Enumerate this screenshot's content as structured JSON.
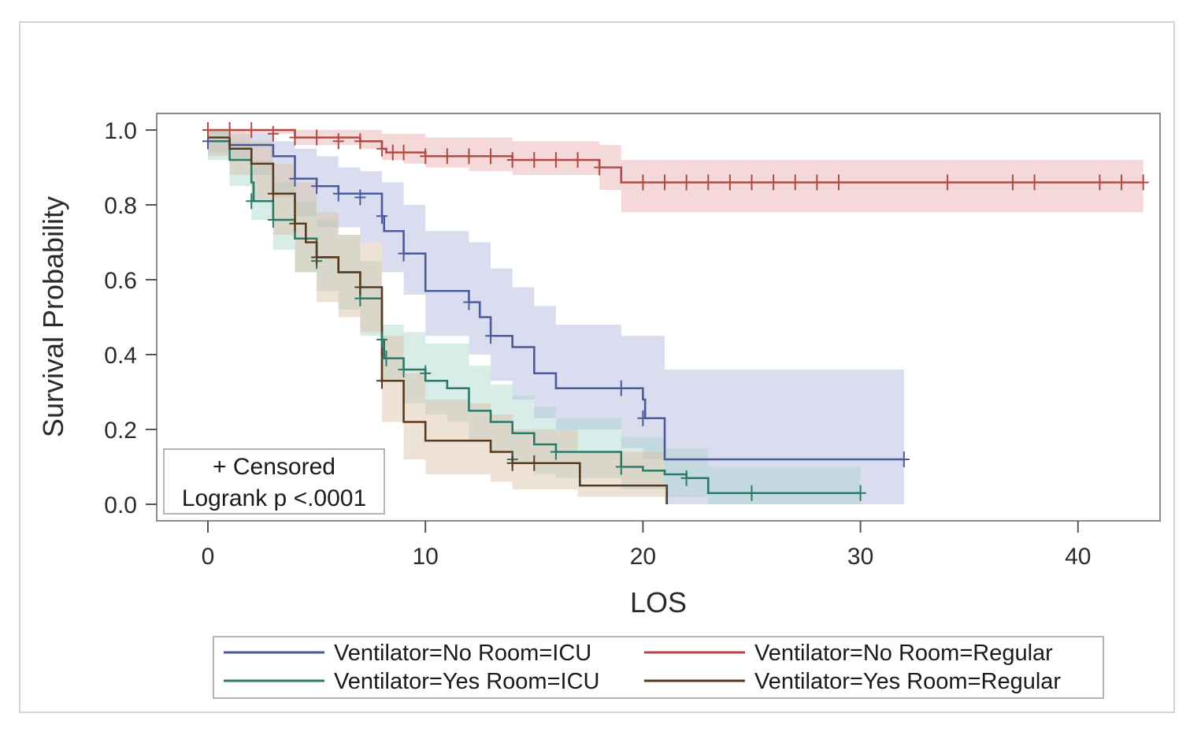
{
  "chart_data": {
    "type": "line",
    "subtype": "kaplan-meier-step",
    "title": "",
    "xlabel": "LOS",
    "ylabel": "Survival Probability",
    "xlim": [
      -2,
      43.5
    ],
    "ylim": [
      -0.04,
      1.04
    ],
    "xticks": [
      0,
      10,
      20,
      30,
      40
    ],
    "yticks": [
      0.0,
      0.2,
      0.4,
      0.6,
      0.8,
      1.0
    ],
    "xtick_labels": [
      "0",
      "10",
      "20",
      "30",
      "40"
    ],
    "ytick_labels": [
      "0.0",
      "0.2",
      "0.4",
      "0.6",
      "0.8",
      "1.0"
    ],
    "annotation": {
      "line1": "+ Censored",
      "line2": "Logrank p <.0001"
    },
    "legend_position": "bottom",
    "series": [
      {
        "name": "Ventilator=No Room=ICU",
        "color": "#4a5a9c",
        "band_color": "#aeb4dc",
        "steps": [
          [
            0,
            0.97
          ],
          [
            1,
            0.96
          ],
          [
            3,
            0.93
          ],
          [
            4,
            0.87
          ],
          [
            5,
            0.85
          ],
          [
            6,
            0.83
          ],
          [
            8,
            0.77
          ],
          [
            8.1,
            0.73
          ],
          [
            9,
            0.67
          ],
          [
            10,
            0.57
          ],
          [
            12,
            0.54
          ],
          [
            12.5,
            0.5
          ],
          [
            13,
            0.45
          ],
          [
            14,
            0.42
          ],
          [
            15,
            0.35
          ],
          [
            16,
            0.31
          ],
          [
            19,
            0.31
          ],
          [
            20,
            0.28
          ],
          [
            20.1,
            0.23
          ],
          [
            21,
            0.12
          ],
          [
            32,
            0.12
          ]
        ],
        "lower": [
          [
            0,
            0.94
          ],
          [
            1,
            0.92
          ],
          [
            2,
            0.88
          ],
          [
            3,
            0.82
          ],
          [
            4,
            0.77
          ],
          [
            5,
            0.74
          ],
          [
            7,
            0.7
          ],
          [
            8,
            0.62
          ],
          [
            9,
            0.56
          ],
          [
            10,
            0.45
          ],
          [
            12,
            0.4
          ],
          [
            13,
            0.33
          ],
          [
            14,
            0.28
          ],
          [
            15,
            0.23
          ],
          [
            16,
            0.2
          ],
          [
            19,
            0.15
          ],
          [
            20,
            0.12
          ],
          [
            21,
            0.0
          ],
          [
            32,
            0.0
          ]
        ],
        "upper": [
          [
            0,
            1.0
          ],
          [
            1,
            0.99
          ],
          [
            3,
            0.97
          ],
          [
            4,
            0.95
          ],
          [
            5,
            0.93
          ],
          [
            6,
            0.9
          ],
          [
            7,
            0.89
          ],
          [
            8,
            0.86
          ],
          [
            9,
            0.8
          ],
          [
            10,
            0.73
          ],
          [
            12,
            0.7
          ],
          [
            13,
            0.63
          ],
          [
            14,
            0.58
          ],
          [
            15,
            0.53
          ],
          [
            16,
            0.48
          ],
          [
            19,
            0.45
          ],
          [
            21,
            0.36
          ],
          [
            32,
            0.36
          ]
        ],
        "censored": [
          [
            0,
            0.97
          ],
          [
            4,
            0.87
          ],
          [
            5,
            0.85
          ],
          [
            6,
            0.83
          ],
          [
            7,
            0.82
          ],
          [
            8,
            0.77
          ],
          [
            9,
            0.67
          ],
          [
            12,
            0.54
          ],
          [
            13,
            0.45
          ],
          [
            19,
            0.31
          ],
          [
            20,
            0.23
          ],
          [
            32,
            0.12
          ]
        ]
      },
      {
        "name": "Ventilator=No Room=Regular",
        "color": "#b04a42",
        "band_color": "#e8a9ac",
        "steps": [
          [
            0,
            1.0
          ],
          [
            4,
            0.98
          ],
          [
            7,
            0.97
          ],
          [
            8,
            0.95
          ],
          [
            8.2,
            0.94
          ],
          [
            9,
            0.94
          ],
          [
            10,
            0.93
          ],
          [
            12,
            0.93
          ],
          [
            14,
            0.92
          ],
          [
            18,
            0.9
          ],
          [
            19,
            0.86
          ],
          [
            43,
            0.86
          ]
        ],
        "lower": [
          [
            0,
            0.99
          ],
          [
            4,
            0.96
          ],
          [
            7,
            0.95
          ],
          [
            8,
            0.92
          ],
          [
            9,
            0.91
          ],
          [
            10,
            0.9
          ],
          [
            12,
            0.89
          ],
          [
            14,
            0.88
          ],
          [
            18,
            0.84
          ],
          [
            19,
            0.78
          ],
          [
            43,
            0.78
          ]
        ],
        "upper": [
          [
            0,
            1.0
          ],
          [
            8,
            0.99
          ],
          [
            10,
            0.98
          ],
          [
            14,
            0.97
          ],
          [
            18,
            0.96
          ],
          [
            19,
            0.92
          ],
          [
            43,
            0.92
          ]
        ],
        "censored": [
          [
            0,
            1.0
          ],
          [
            1,
            1.0
          ],
          [
            2,
            1.0
          ],
          [
            3,
            0.99
          ],
          [
            4,
            0.98
          ],
          [
            5,
            0.98
          ],
          [
            6,
            0.97
          ],
          [
            7,
            0.97
          ],
          [
            8,
            0.95
          ],
          [
            8.5,
            0.94
          ],
          [
            9,
            0.94
          ],
          [
            10,
            0.93
          ],
          [
            11,
            0.93
          ],
          [
            12,
            0.93
          ],
          [
            13,
            0.93
          ],
          [
            14,
            0.92
          ],
          [
            15,
            0.92
          ],
          [
            16,
            0.92
          ],
          [
            17,
            0.92
          ],
          [
            18,
            0.9
          ],
          [
            20,
            0.86
          ],
          [
            21,
            0.86
          ],
          [
            22,
            0.86
          ],
          [
            23,
            0.86
          ],
          [
            24,
            0.86
          ],
          [
            25,
            0.86
          ],
          [
            26,
            0.86
          ],
          [
            27,
            0.86
          ],
          [
            28,
            0.86
          ],
          [
            29,
            0.86
          ],
          [
            34,
            0.86
          ],
          [
            37,
            0.86
          ],
          [
            38,
            0.86
          ],
          [
            41,
            0.86
          ],
          [
            42,
            0.86
          ],
          [
            43,
            0.86
          ]
        ]
      },
      {
        "name": "Ventilator=Yes Room=ICU",
        "color": "#2a7a6a",
        "band_color": "#a9d4cd",
        "steps": [
          [
            0,
            0.97
          ],
          [
            1,
            0.92
          ],
          [
            2,
            0.86
          ],
          [
            2.1,
            0.81
          ],
          [
            3,
            0.76
          ],
          [
            4,
            0.71
          ],
          [
            5,
            0.66
          ],
          [
            6,
            0.62
          ],
          [
            7,
            0.55
          ],
          [
            8,
            0.44
          ],
          [
            8.1,
            0.39
          ],
          [
            9,
            0.36
          ],
          [
            10,
            0.33
          ],
          [
            11,
            0.31
          ],
          [
            12,
            0.25
          ],
          [
            13,
            0.22
          ],
          [
            14,
            0.19
          ],
          [
            15,
            0.16
          ],
          [
            16,
            0.14
          ],
          [
            19,
            0.1
          ],
          [
            20,
            0.09
          ],
          [
            21,
            0.08
          ],
          [
            22,
            0.07
          ],
          [
            23,
            0.03
          ],
          [
            30,
            0.03
          ]
        ],
        "lower": [
          [
            0,
            0.92
          ],
          [
            1,
            0.85
          ],
          [
            2,
            0.76
          ],
          [
            3,
            0.68
          ],
          [
            4,
            0.62
          ],
          [
            5,
            0.57
          ],
          [
            6,
            0.52
          ],
          [
            7,
            0.45
          ],
          [
            8,
            0.33
          ],
          [
            9,
            0.27
          ],
          [
            10,
            0.24
          ],
          [
            11,
            0.22
          ],
          [
            12,
            0.17
          ],
          [
            13,
            0.14
          ],
          [
            14,
            0.11
          ],
          [
            15,
            0.08
          ],
          [
            16,
            0.07
          ],
          [
            19,
            0.04
          ],
          [
            21,
            0.02
          ],
          [
            23,
            0.0
          ],
          [
            30,
            0.0
          ]
        ],
        "upper": [
          [
            0,
            1.0
          ],
          [
            1,
            0.97
          ],
          [
            2,
            0.92
          ],
          [
            3,
            0.86
          ],
          [
            4,
            0.81
          ],
          [
            5,
            0.76
          ],
          [
            6,
            0.72
          ],
          [
            7,
            0.65
          ],
          [
            8,
            0.48
          ],
          [
            9,
            0.46
          ],
          [
            10,
            0.43
          ],
          [
            12,
            0.37
          ],
          [
            13,
            0.32
          ],
          [
            14,
            0.29
          ],
          [
            15,
            0.26
          ],
          [
            16,
            0.23
          ],
          [
            19,
            0.18
          ],
          [
            21,
            0.15
          ],
          [
            23,
            0.1
          ],
          [
            30,
            0.1
          ]
        ],
        "censored": [
          [
            2,
            0.81
          ],
          [
            3,
            0.76
          ],
          [
            5,
            0.65
          ],
          [
            7,
            0.55
          ],
          [
            8,
            0.44
          ],
          [
            8.2,
            0.39
          ],
          [
            9,
            0.36
          ],
          [
            10,
            0.35
          ],
          [
            14,
            0.12
          ],
          [
            16,
            0.14
          ],
          [
            19,
            0.1
          ],
          [
            22,
            0.07
          ],
          [
            25,
            0.03
          ],
          [
            30,
            0.03
          ]
        ]
      },
      {
        "name": "Ventilator=Yes Room=Regular",
        "color": "#5a3a1e",
        "band_color": "#d9bfa3",
        "steps": [
          [
            0,
            0.98
          ],
          [
            1,
            0.95
          ],
          [
            2,
            0.91
          ],
          [
            3,
            0.83
          ],
          [
            4,
            0.75
          ],
          [
            4.5,
            0.7
          ],
          [
            5,
            0.66
          ],
          [
            6,
            0.62
          ],
          [
            7,
            0.58
          ],
          [
            8,
            0.33
          ],
          [
            9,
            0.22
          ],
          [
            10,
            0.17
          ],
          [
            12,
            0.17
          ],
          [
            13,
            0.14
          ],
          [
            14,
            0.11
          ],
          [
            17,
            0.11
          ],
          [
            17.1,
            0.05
          ],
          [
            21,
            0.05
          ],
          [
            21.1,
            0.0
          ]
        ],
        "lower": [
          [
            0,
            0.93
          ],
          [
            1,
            0.88
          ],
          [
            2,
            0.81
          ],
          [
            3,
            0.72
          ],
          [
            4,
            0.62
          ],
          [
            5,
            0.54
          ],
          [
            6,
            0.5
          ],
          [
            7,
            0.46
          ],
          [
            8,
            0.22
          ],
          [
            9,
            0.12
          ],
          [
            10,
            0.08
          ],
          [
            13,
            0.06
          ],
          [
            14,
            0.04
          ],
          [
            17,
            0.02
          ],
          [
            21,
            0.0
          ]
        ],
        "upper": [
          [
            0,
            1.0
          ],
          [
            1,
            0.99
          ],
          [
            2,
            0.97
          ],
          [
            3,
            0.91
          ],
          [
            4,
            0.86
          ],
          [
            5,
            0.78
          ],
          [
            6,
            0.72
          ],
          [
            7,
            0.7
          ],
          [
            8,
            0.45
          ],
          [
            9,
            0.35
          ],
          [
            10,
            0.28
          ],
          [
            12,
            0.27
          ],
          [
            13,
            0.24
          ],
          [
            14,
            0.2
          ],
          [
            17,
            0.14
          ],
          [
            21,
            0.06
          ]
        ],
        "censored": [
          [
            3,
            0.83
          ],
          [
            4,
            0.75
          ],
          [
            5,
            0.66
          ],
          [
            7,
            0.58
          ],
          [
            8,
            0.33
          ],
          [
            14,
            0.11
          ],
          [
            15,
            0.11
          ]
        ]
      }
    ]
  }
}
